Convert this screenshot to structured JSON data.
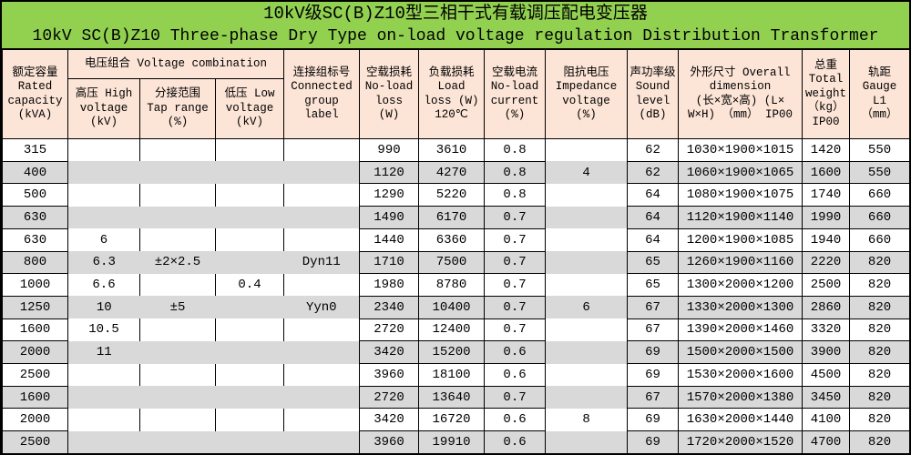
{
  "title": {
    "line1_zh": "10kV级SC(B)Z10型三相干式有载调压配电变压器",
    "line2_en": "10kV SC(B)Z10 Three-phase Dry Type on-load voltage regulation Distribution Transformer"
  },
  "colors": {
    "title_bg": "#92D050",
    "header_bg": "#FCE4D6",
    "row_bg": "#FFFFFF",
    "row_alt_bg": "#D9D9D9",
    "border": "#000000"
  },
  "header": {
    "rated_capacity": "额定容量\nRated\ncapacity\n(kVA)",
    "voltage_combination": "电压组合 Voltage combination",
    "high_voltage": "高压 High\nvoltage\n(kV)",
    "tap_range": "分接范围\nTap range\n(%)",
    "low_voltage": "低压 Low\nvoltage\n(kV)",
    "connected_group": "连接组标号\nConnected\ngroup\nlabel",
    "no_load_loss": "空载损耗\nNo-load\nloss\n(W)",
    "load_loss": "负载损耗\nLoad\nloss (W)\n120℃",
    "no_load_current": "空载电流\nNo-load\ncurrent\n(%)",
    "impedance_voltage": "阻抗电压\nImpedance\nvoltage\n(%)",
    "sound_level": "声功率级\nSound\nlevel\n(dB)",
    "overall_dimension": "外形尺寸 Overall\ndimension\n(长×宽×高) (L×\nW×H) （mm） IP00",
    "total_weight": "总重\nTotal\nweight\n（kg）\nIP00",
    "gauge": "轨距\nGauge\nL1\n（mm）"
  },
  "columns_keys": [
    "rated-capacity",
    "high-voltage",
    "tap-range",
    "low-voltage",
    "connected-group",
    "no-load-loss",
    "load-loss",
    "no-load-current",
    "impedance-voltage",
    "sound-level",
    "overall-dimension",
    "total-weight",
    "gauge"
  ],
  "rows": [
    [
      "315",
      "",
      "",
      "",
      "",
      "990",
      "3610",
      "0.8",
      "",
      "62",
      "1030×1900×1015",
      "1420",
      "550"
    ],
    [
      "400",
      "",
      "",
      "",
      "",
      "1120",
      "4270",
      "0.8",
      "4",
      "62",
      "1060×1900×1065",
      "1600",
      "550"
    ],
    [
      "500",
      "",
      "",
      "",
      "",
      "1290",
      "5220",
      "0.8",
      "",
      "64",
      "1080×1900×1075",
      "1740",
      "660"
    ],
    [
      "630",
      "",
      "",
      "",
      "",
      "1490",
      "6170",
      "0.7",
      "",
      "64",
      "1120×1900×1140",
      "1990",
      "660"
    ],
    [
      "630",
      "6",
      "",
      "",
      "",
      "1440",
      "6360",
      "0.7",
      "",
      "64",
      "1200×1900×1085",
      "1940",
      "660"
    ],
    [
      "800",
      "6.3",
      "±2×2.5",
      "",
      "Dyn11",
      "1710",
      "7500",
      "0.7",
      "",
      "65",
      "1260×1900×1160",
      "2220",
      "820"
    ],
    [
      "1000",
      "6.6",
      "",
      "0.4",
      "",
      "1980",
      "8780",
      "0.7",
      "",
      "65",
      "1300×2000×1200",
      "2500",
      "820"
    ],
    [
      "1250",
      "10",
      "±5",
      "",
      "Yyn0",
      "2340",
      "10400",
      "0.7",
      "6",
      "67",
      "1330×2000×1300",
      "2860",
      "820"
    ],
    [
      "1600",
      "10.5",
      "",
      "",
      "",
      "2720",
      "12400",
      "0.7",
      "",
      "67",
      "1390×2000×1460",
      "3320",
      "820"
    ],
    [
      "2000",
      "11",
      "",
      "",
      "",
      "3420",
      "15200",
      "0.6",
      "",
      "69",
      "1500×2000×1500",
      "3900",
      "820"
    ],
    [
      "2500",
      "",
      "",
      "",
      "",
      "3960",
      "18100",
      "0.6",
      "",
      "69",
      "1530×2000×1600",
      "4500",
      "820"
    ],
    [
      "1600",
      "",
      "",
      "",
      "",
      "2720",
      "13640",
      "0.7",
      "",
      "67",
      "1570×2000×1380",
      "3450",
      "820"
    ],
    [
      "2000",
      "",
      "",
      "",
      "",
      "3420",
      "16720",
      "0.6",
      "8",
      "69",
      "1630×2000×1440",
      "4100",
      "820"
    ],
    [
      "2500",
      "",
      "",
      "",
      "",
      "3960",
      "19910",
      "0.6",
      "",
      "69",
      "1720×2000×1520",
      "4700",
      "820"
    ]
  ]
}
